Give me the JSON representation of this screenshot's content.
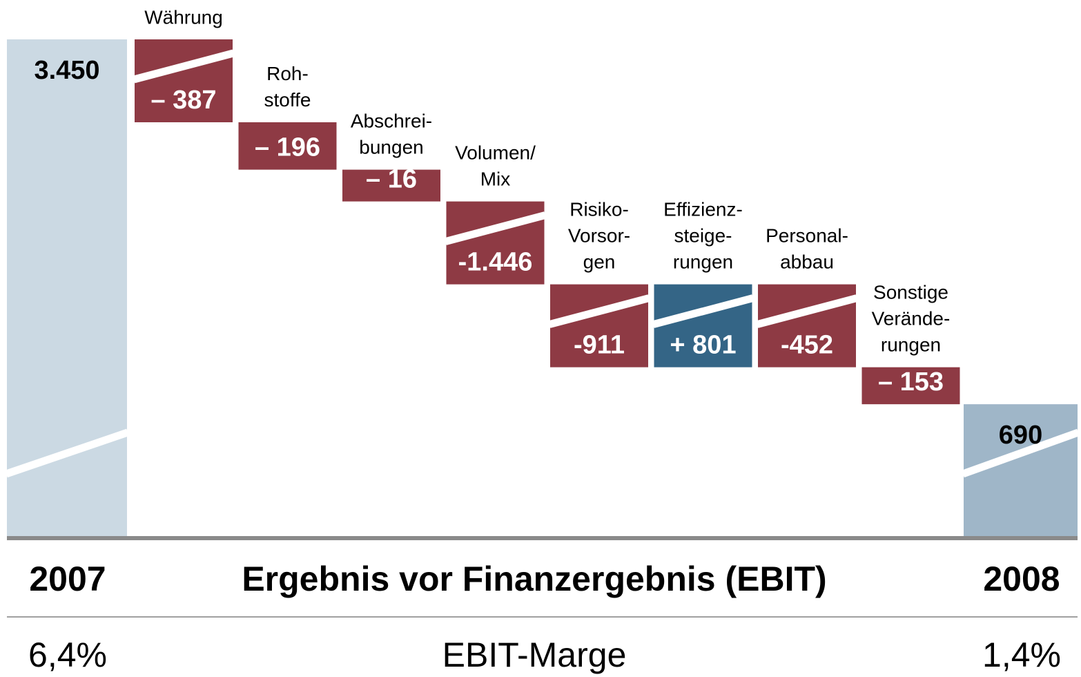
{
  "chart_data": {
    "type": "waterfall",
    "categories": [
      null,
      "Währung",
      "Roh-\nstoffe",
      "Abschrei-\nbungen",
      "Volumen/\nMix",
      "Risiko-\nVorsor-\ngen",
      "Effizienz-\nsteige-\nrungen",
      "Personal-\nabbau",
      "Sonstige\nVerände-\nrungen",
      null
    ],
    "values": [
      3450,
      -387,
      -196,
      -16,
      -1446,
      -911,
      801,
      -452,
      -153,
      690
    ],
    "value_labels": [
      "3.450",
      "– 387",
      "– 196",
      "– 16",
      "-1.446",
      "-911",
      "+ 801",
      "-452",
      "– 153",
      "690"
    ],
    "colors": [
      "#cbd9e3",
      "#8e3a44",
      "#8e3a44",
      "#8e3a44",
      "#8e3a44",
      "#8e3a44",
      "#346586",
      "#8e3a44",
      "#8e3a44",
      "#9fb6c8"
    ],
    "title": "Ergebnis vor Finanzergebnis (EBIT)",
    "start_label": "2007",
    "end_label": "2008",
    "subtitle": "EBIT-Marge",
    "start_margin": "6,4%",
    "end_margin": "1,4%"
  }
}
